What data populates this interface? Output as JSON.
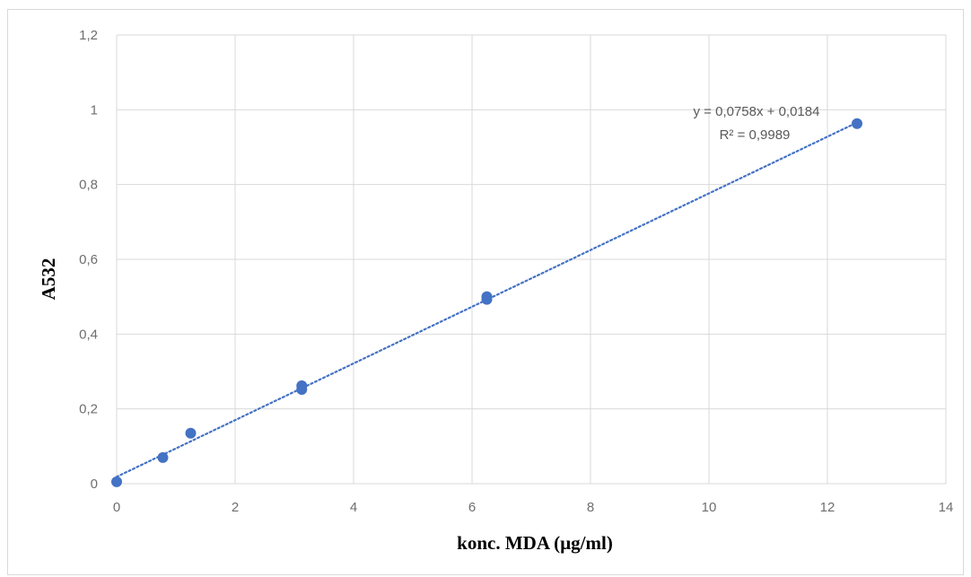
{
  "chart_data": {
    "type": "scatter",
    "title": "",
    "xlabel": "konc. MDA (µg/ml)",
    "ylabel": "A532",
    "xlim": [
      0,
      14
    ],
    "ylim": [
      0,
      1.2
    ],
    "xticks": [
      0,
      2,
      4,
      6,
      8,
      10,
      12,
      14
    ],
    "yticks": [
      0,
      0.2,
      0.4,
      0.6,
      0.8,
      1,
      1.2
    ],
    "xtick_labels": [
      "0",
      "2",
      "4",
      "6",
      "8",
      "10",
      "12",
      "14"
    ],
    "ytick_labels": [
      "0",
      "0,2",
      "0,4",
      "0,6",
      "0,8",
      "1",
      "1,2"
    ],
    "grid": true,
    "marker_color": "#4472c4",
    "series": [
      {
        "points": [
          {
            "x": 0,
            "y": 0.005
          },
          {
            "x": 0.78,
            "y": 0.07
          },
          {
            "x": 1.25,
            "y": 0.135
          },
          {
            "x": 3.125,
            "y": 0.262
          },
          {
            "x": 3.125,
            "y": 0.252
          },
          {
            "x": 6.25,
            "y": 0.5
          },
          {
            "x": 6.25,
            "y": 0.493
          },
          {
            "x": 12.5,
            "y": 0.963
          }
        ]
      }
    ],
    "trendline": {
      "slope": 0.0758,
      "intercept": 0.0184,
      "x_range": [
        0,
        12.5
      ],
      "style": "dotted",
      "equation_label": "y = 0,0758x + 0,0184",
      "r2_label": "R² = 0,9989"
    }
  }
}
